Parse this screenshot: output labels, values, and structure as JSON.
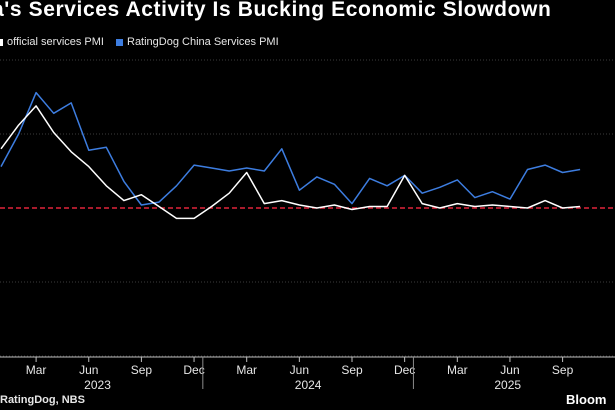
{
  "title": "a's Services Activity Is Bucking Economic Slowdown",
  "legend": {
    "official": "official services PMI",
    "ratingdog": "RatingDog China Services PMI"
  },
  "source": "RatingDog, NBS",
  "brand": "Bloom",
  "colors": {
    "background": "#000000",
    "ratingdog": "#3d7de0",
    "official": "#ffffff",
    "reference": "#e0243a",
    "grid": "#3c3c3c"
  },
  "chart_data": {
    "type": "line",
    "title": "a's Services Activity Is Bucking Economic Slowdown",
    "x": [
      "2023-01",
      "2023-02",
      "2023-03",
      "2023-04",
      "2023-05",
      "2023-06",
      "2023-07",
      "2023-08",
      "2023-09",
      "2023-10",
      "2023-11",
      "2023-12",
      "2024-01",
      "2024-02",
      "2024-03",
      "2024-04",
      "2024-05",
      "2024-06",
      "2024-07",
      "2024-08",
      "2024-09",
      "2024-10",
      "2024-11",
      "2024-12",
      "2025-01",
      "2025-02",
      "2025-03",
      "2025-04",
      "2025-05",
      "2025-06",
      "2025-07",
      "2025-08",
      "2025-09",
      "2025-10"
    ],
    "series": [
      {
        "name": "official services PMI",
        "values": [
          54.0,
          55.6,
          56.9,
          55.1,
          53.8,
          52.8,
          51.5,
          50.5,
          50.9,
          50.1,
          49.3,
          49.3,
          50.1,
          51.0,
          52.4,
          50.3,
          50.5,
          50.2,
          50.0,
          50.2,
          49.9,
          50.1,
          50.1,
          52.2,
          50.3,
          50.0,
          50.3,
          50.1,
          50.2,
          50.1,
          50.0,
          50.5,
          50.0,
          50.1
        ]
      },
      {
        "name": "RatingDog China Services PMI",
        "values": [
          52.8,
          55.0,
          57.8,
          56.4,
          57.1,
          53.9,
          54.1,
          51.8,
          50.2,
          50.4,
          51.5,
          52.9,
          52.7,
          52.5,
          52.7,
          52.5,
          54.0,
          51.2,
          52.1,
          51.6,
          50.3,
          52.0,
          51.5,
          52.2,
          51.0,
          51.4,
          51.9,
          50.7,
          51.1,
          50.6,
          52.6,
          52.9,
          52.4,
          52.6
        ]
      }
    ],
    "reference_line": 50,
    "x_ticks": [
      "Mar",
      "Jun",
      "Sep",
      "Dec",
      "Mar",
      "Jun",
      "Sep",
      "Dec",
      "Mar",
      "Jun",
      "Sep"
    ],
    "year_labels": [
      "2023",
      "2024",
      "2025"
    ],
    "ylim": [
      40,
      60
    ],
    "xlabel": "",
    "ylabel": "",
    "grid": true
  }
}
